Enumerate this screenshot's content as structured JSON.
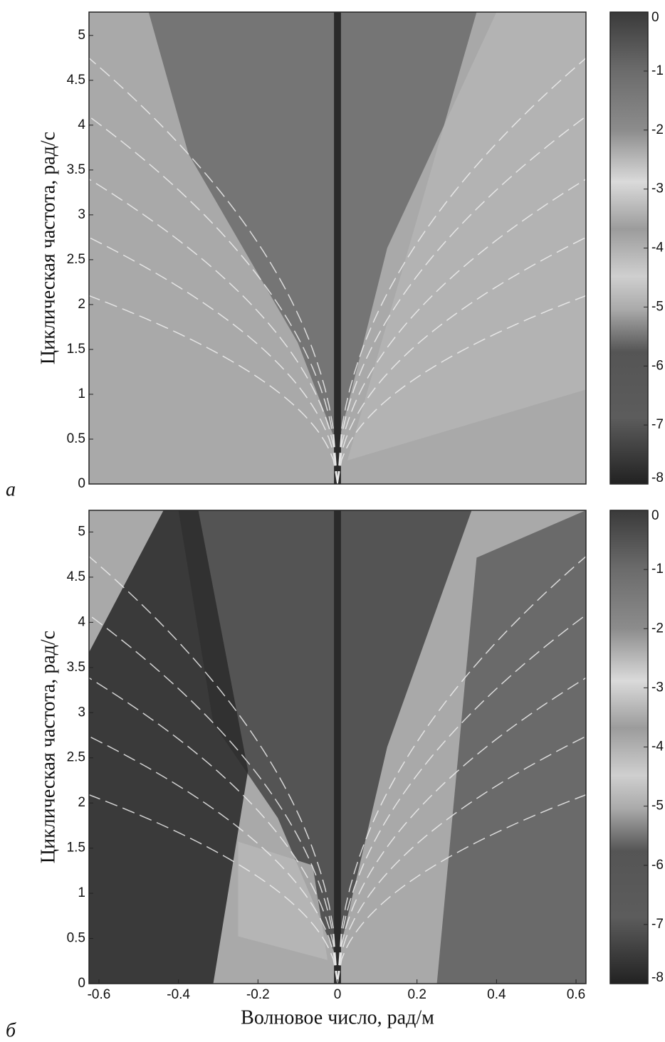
{
  "chart_data": [
    {
      "type": "heatmap",
      "panel_label": "а",
      "ylabel": "Циклическая частота, рад/с",
      "xlim": [
        -0.625,
        0.625
      ],
      "ylim": [
        0,
        5.26
      ],
      "yticks": [
        0,
        0.5,
        1,
        1.5,
        2,
        2.5,
        3,
        3.5,
        4,
        4.5,
        5
      ],
      "colorbar": {
        "zlim": [
          -8,
          0
        ],
        "ticks": [
          0,
          -1,
          -2,
          -3,
          -4,
          -5,
          -6,
          -7,
          -8
        ]
      }
    },
    {
      "type": "heatmap",
      "panel_label": "б",
      "ylabel": "Циклическая частота, рад/с",
      "xlabel": "Волновое число, рад/м",
      "xlim": [
        -0.625,
        0.625
      ],
      "ylim": [
        0,
        5.24
      ],
      "xticks": [
        -0.6,
        -0.4,
        -0.2,
        0,
        0.2,
        0.4,
        0.6
      ],
      "yticks": [
        0,
        0.5,
        1,
        1.5,
        2,
        2.5,
        3,
        3.5,
        4,
        4.5,
        5
      ],
      "colorbar": {
        "zlim": [
          -8,
          0
        ],
        "ticks": [
          0,
          -1,
          -2,
          -3,
          -4,
          -5,
          -6,
          -7,
          -8
        ]
      }
    }
  ]
}
